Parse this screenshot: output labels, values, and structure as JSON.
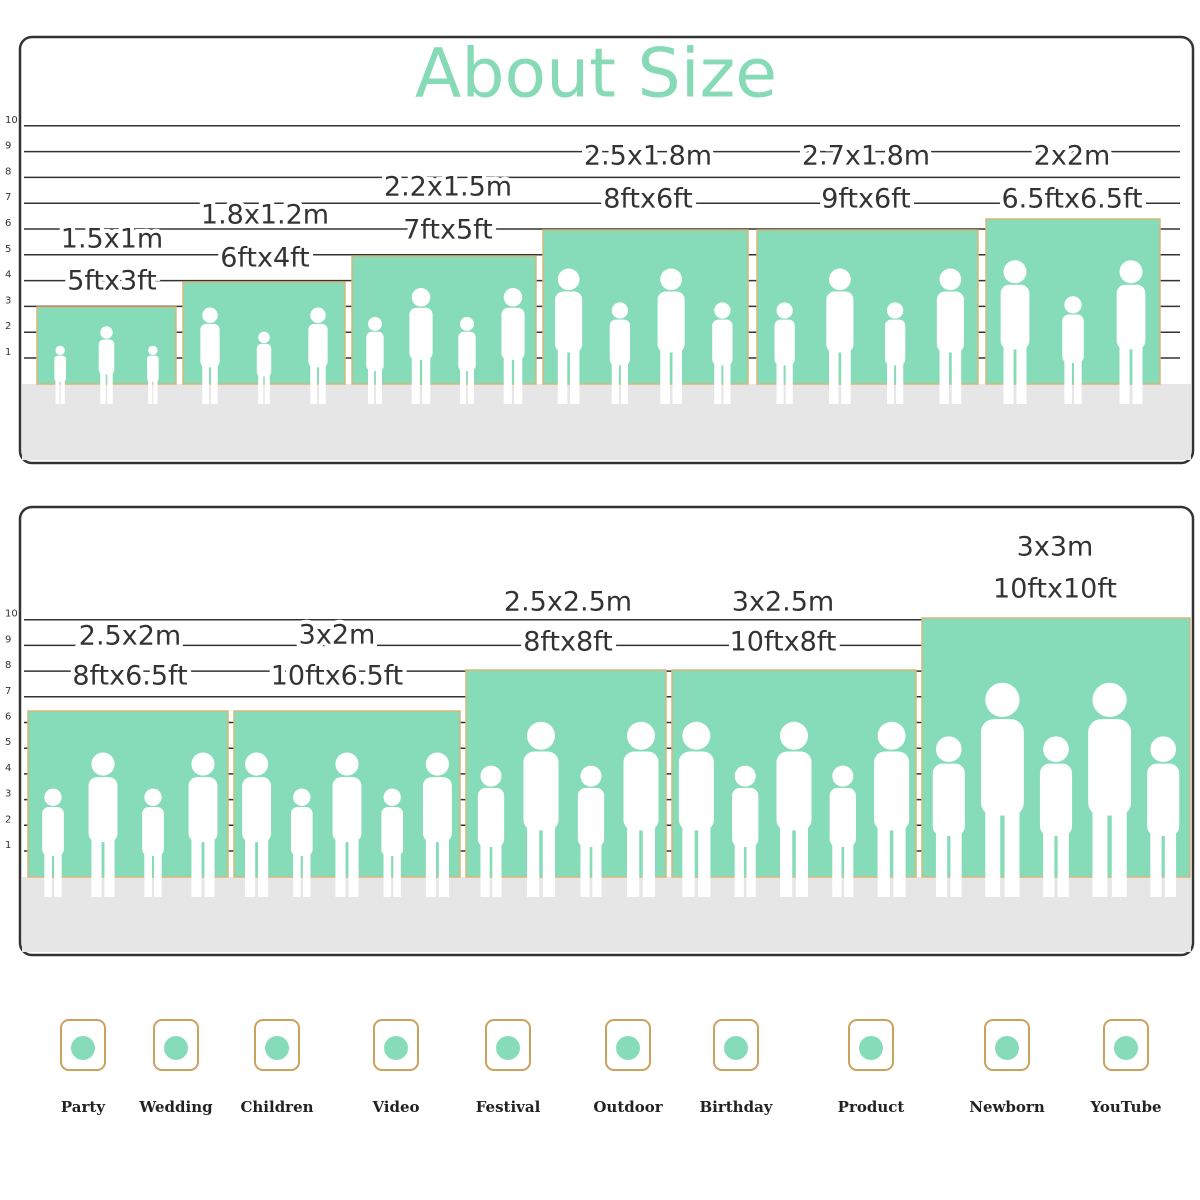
{
  "title": "About Size",
  "scale": [
    1,
    2,
    3,
    4,
    5,
    6,
    7,
    8,
    9,
    10
  ],
  "panels": [
    {
      "sizes": [
        {
          "metric": "1.5x1m",
          "imperial": "5ftx3ft"
        },
        {
          "metric": "1.8x1.2m",
          "imperial": "6ftx4ft"
        },
        {
          "metric": "2.2x1.5m",
          "imperial": "7ftx5ft"
        },
        {
          "metric": "2.5x1.8m",
          "imperial": "8ftx6ft"
        },
        {
          "metric": "2.7x1.8m",
          "imperial": "9ftx6ft"
        },
        {
          "metric": "2x2m",
          "imperial": "6.5ftx6.5ft"
        }
      ]
    },
    {
      "sizes": [
        {
          "metric": "2.5x2m",
          "imperial": "8ftx6.5ft"
        },
        {
          "metric": "3x2m",
          "imperial": "10ftx6.5ft"
        },
        {
          "metric": "2.5x2.5m",
          "imperial": "8ftx8ft"
        },
        {
          "metric": "3x2.5m",
          "imperial": "10ftx8ft"
        },
        {
          "metric": "3x3m",
          "imperial": "10ftx10ft"
        }
      ]
    }
  ],
  "uses": [
    "Party",
    "Wedding",
    "Children",
    "Video",
    "Festival",
    "Outdoor",
    "Birthday",
    "Product",
    "Newborn",
    "YouTube"
  ]
}
